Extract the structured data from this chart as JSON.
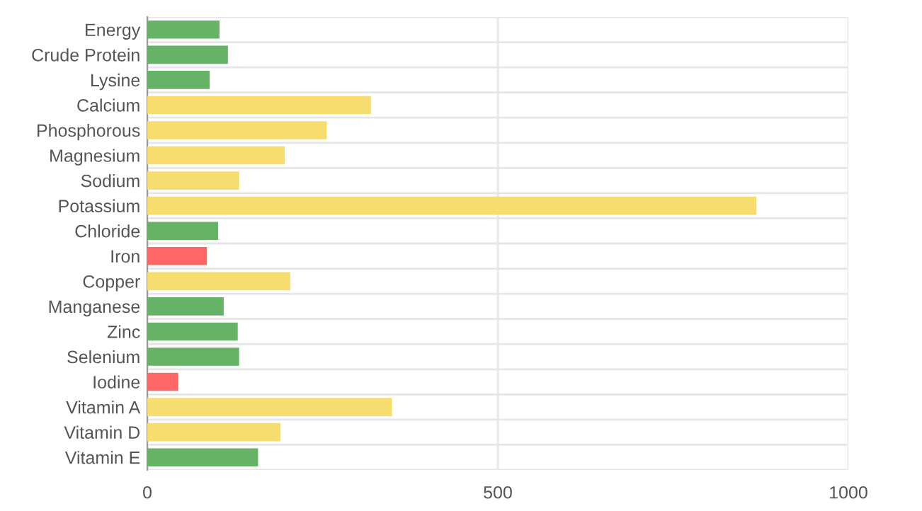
{
  "chart_data": {
    "type": "bar",
    "orientation": "horizontal",
    "categories": [
      "Energy",
      "Crude Protein",
      "Lysine",
      "Calcium",
      "Phosphorous",
      "Magnesium",
      "Sodium",
      "Potassium",
      "Chloride",
      "Iron",
      "Copper",
      "Manganese",
      "Zinc",
      "Selenium",
      "Iodine",
      "Vitamin A",
      "Vitamin D",
      "Vitamin E"
    ],
    "values": [
      103,
      115,
      89,
      319,
      256,
      196,
      131,
      869,
      101,
      85,
      204,
      109,
      129,
      131,
      44,
      349,
      190,
      158
    ],
    "colors": [
      "#66b266",
      "#66b266",
      "#66b266",
      "#f7dc6f",
      "#f7dc6f",
      "#f7dc6f",
      "#f7dc6f",
      "#f7dc6f",
      "#66b266",
      "#ff6666",
      "#f7dc6f",
      "#66b266",
      "#66b266",
      "#66b266",
      "#ff6666",
      "#f7dc6f",
      "#f7dc6f",
      "#66b266"
    ],
    "xlim": [
      0,
      1000
    ],
    "xticks": [
      0,
      500,
      1000
    ],
    "grid": true
  }
}
